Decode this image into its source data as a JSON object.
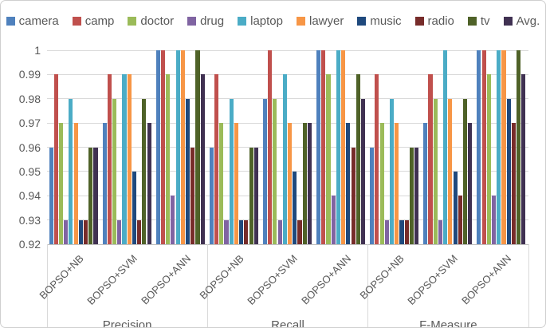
{
  "figure": {
    "background": "#ffffff",
    "border_color": "#cfcfcf"
  },
  "colors": {
    "grid": "#d9d9d9",
    "axis": "#bfbfbf",
    "text": "#595959"
  },
  "chart_data": {
    "type": "bar",
    "title": "",
    "xlabel": "",
    "ylabel": "",
    "ylim": [
      0.92,
      1.0
    ],
    "ytick_step": 0.01,
    "yticks": [
      "1",
      "0.99",
      "0.98",
      "0.97",
      "0.96",
      "0.95",
      "0.94",
      "0.93",
      "0.92"
    ],
    "grid": true,
    "legend_position": "top",
    "categories": [
      "BOPSO+NB",
      "BOPSO+SVM",
      "BOPSO+ANN",
      "BOPSO+NB",
      "BOPSO+SVM",
      "BOPSO+ANN",
      "BOPSO+NB",
      "BOPSO+SVM",
      "BOPSO+ANN"
    ],
    "category_groups": [
      {
        "label": "Precision",
        "span": 3
      },
      {
        "label": "Recall",
        "span": 3
      },
      {
        "label": "F-Measure",
        "span": 3
      }
    ],
    "series": [
      {
        "name": "camera",
        "color": "#4F81BD",
        "values": [
          0.96,
          0.97,
          1.0,
          0.96,
          0.98,
          1.0,
          0.96,
          0.97,
          1.0
        ]
      },
      {
        "name": "camp",
        "color": "#C0504D",
        "values": [
          0.99,
          0.99,
          1.0,
          0.99,
          1.0,
          1.0,
          0.99,
          0.99,
          1.0
        ]
      },
      {
        "name": "doctor",
        "color": "#9BBB59",
        "values": [
          0.97,
          0.98,
          0.99,
          0.97,
          0.98,
          0.99,
          0.97,
          0.98,
          0.99
        ]
      },
      {
        "name": "drug",
        "color": "#8064A2",
        "values": [
          0.93,
          0.93,
          0.94,
          0.93,
          0.93,
          0.94,
          0.93,
          0.93,
          0.94
        ]
      },
      {
        "name": "laptop",
        "color": "#4BACC6",
        "values": [
          0.98,
          0.99,
          1.0,
          0.98,
          0.99,
          1.0,
          0.98,
          1.0,
          1.0
        ]
      },
      {
        "name": "lawyer",
        "color": "#F79646",
        "values": [
          0.97,
          0.99,
          1.0,
          0.97,
          0.97,
          1.0,
          0.97,
          0.98,
          1.0
        ]
      },
      {
        "name": "music",
        "color": "#1F497D",
        "values": [
          0.93,
          0.95,
          0.98,
          0.93,
          0.95,
          0.97,
          0.93,
          0.95,
          0.98
        ]
      },
      {
        "name": "radio",
        "color": "#772C2A",
        "values": [
          0.93,
          0.93,
          0.96,
          0.93,
          0.93,
          0.96,
          0.93,
          0.94,
          0.97
        ]
      },
      {
        "name": "tv",
        "color": "#4F6228",
        "values": [
          0.96,
          0.98,
          1.0,
          0.96,
          0.97,
          0.99,
          0.96,
          0.98,
          1.0
        ]
      },
      {
        "name": "Avg.",
        "color": "#403152",
        "values": [
          0.96,
          0.97,
          0.99,
          0.96,
          0.97,
          0.98,
          0.96,
          0.97,
          0.99
        ]
      }
    ]
  }
}
